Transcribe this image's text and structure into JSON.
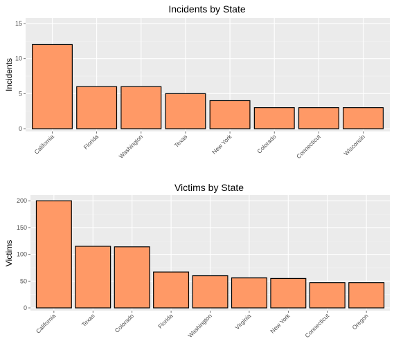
{
  "chart_data": [
    {
      "type": "bar",
      "title": "Incidents by State",
      "xlabel": "",
      "ylabel": "Incidents",
      "categories": [
        "California",
        "Florida",
        "Washington",
        "Texas",
        "New York",
        "Colorado",
        "Connecticut",
        "Wisconsin"
      ],
      "values": [
        12,
        6,
        6,
        5,
        4,
        3,
        3,
        3
      ],
      "ylim": [
        0,
        15.6
      ],
      "yticks": [
        0,
        5,
        10,
        15
      ],
      "grid": true,
      "bar_fill": "#FF9966",
      "bar_stroke": "#000000",
      "panel_bg": "#EBEBEB"
    },
    {
      "type": "bar",
      "title": "Victims by State",
      "xlabel": "",
      "ylabel": "Victims",
      "categories": [
        "California",
        "Texas",
        "Colorado",
        "Florida",
        "Washington",
        "Virginia",
        "New York",
        "Connecticut",
        "Oregon"
      ],
      "values": [
        200,
        115,
        114,
        67,
        60,
        56,
        55,
        47,
        47
      ],
      "ylim": [
        0,
        208
      ],
      "yticks": [
        0,
        50,
        100,
        150,
        200
      ],
      "grid": true,
      "bar_fill": "#FF9966",
      "bar_stroke": "#000000",
      "panel_bg": "#EBEBEB"
    }
  ]
}
